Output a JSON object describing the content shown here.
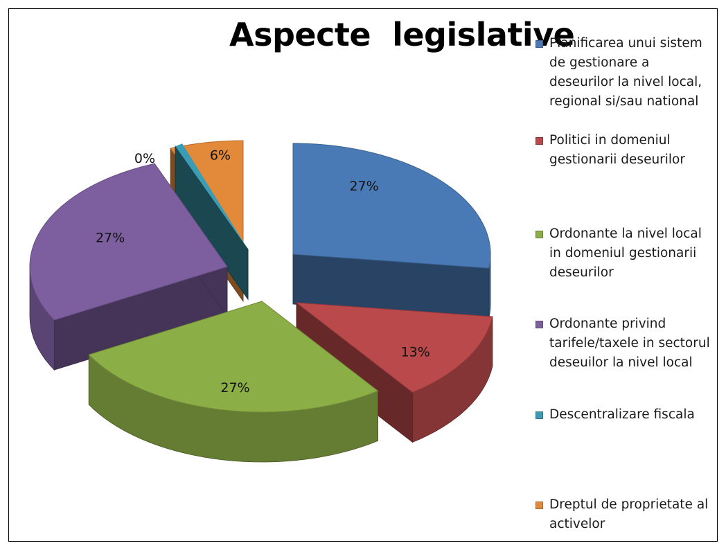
{
  "chart_data": {
    "type": "pie",
    "title": "Aspecte  legislative",
    "legend_position": "right",
    "categories": [
      "Planificarea unui sistem de gestionare a deseurilor la nivel local, regional si/sau national",
      "Politici in domeniul gestionarii deseurilor",
      "Ordonante la nivel local in domeniul gestionarii deseurilor",
      "Ordonante privind tarifele/taxele in sectorul deseuilor la nivel local",
      "Descentralizare fiscala",
      "Dreptul de proprietate al activelor"
    ],
    "values": [
      27,
      13,
      27,
      27,
      0,
      6
    ],
    "data_labels": [
      "27%",
      "13%",
      "27%",
      "27%",
      "0%",
      "6%"
    ],
    "colors": [
      "#4a7ab5",
      "#b9494a",
      "#8cae46",
      "#7d5fa0",
      "#3b9db5",
      "#e3893a"
    ]
  }
}
